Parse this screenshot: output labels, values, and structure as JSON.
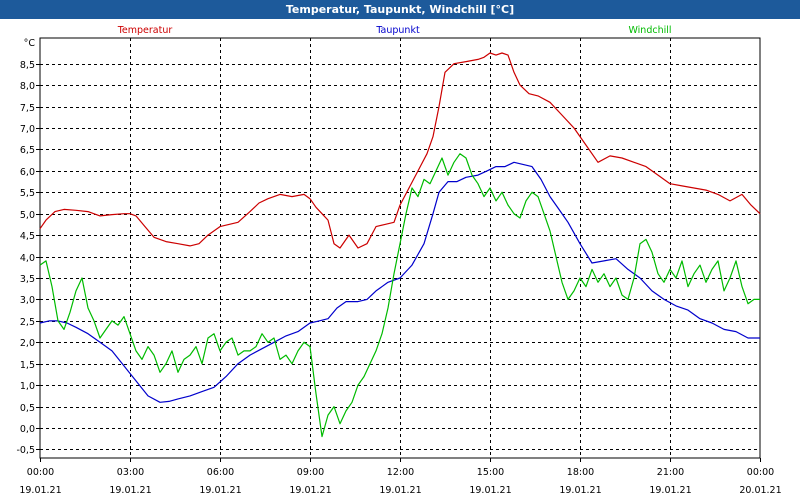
{
  "window": {
    "title": "Temperatur, Taupunkt, Windchill [°C]"
  },
  "chart_data": {
    "type": "line",
    "title": "Temperatur, Taupunkt, Windchill [°C]",
    "ylabel": "°C",
    "ylim": [
      -0.7,
      9.1
    ],
    "yticks": [
      -0.5,
      0.0,
      0.5,
      1.0,
      1.5,
      2.0,
      2.5,
      3.0,
      3.5,
      4.0,
      4.5,
      5.0,
      5.5,
      6.0,
      6.5,
      7.0,
      7.5,
      8.0,
      8.5
    ],
    "ytick_labels": [
      "-0,5",
      "0,0",
      "0,5",
      "1,0",
      "1,5",
      "2,0",
      "2,5",
      "3,0",
      "3,5",
      "4,0",
      "4,5",
      "5,0",
      "5,5",
      "6,0",
      "6,5",
      "7,0",
      "7,5",
      "8,0",
      "8,5"
    ],
    "xlim": [
      0,
      24
    ],
    "xticks": [
      {
        "h": 0,
        "time": "00:00",
        "date": "19.01.21"
      },
      {
        "h": 3,
        "time": "03:00",
        "date": "19.01.21"
      },
      {
        "h": 6,
        "time": "06:00",
        "date": "19.01.21"
      },
      {
        "h": 9,
        "time": "09:00",
        "date": "19.01.21"
      },
      {
        "h": 12,
        "time": "12:00",
        "date": "19.01.21"
      },
      {
        "h": 15,
        "time": "15:00",
        "date": "19.01.21"
      },
      {
        "h": 18,
        "time": "18:00",
        "date": "19.01.21"
      },
      {
        "h": 21,
        "time": "21:00",
        "date": "19.01.21"
      },
      {
        "h": 24,
        "time": "00:00",
        "date": "20.01.21"
      }
    ],
    "grid": true,
    "series": [
      {
        "name": "Temperatur",
        "color": "#cc0000",
        "x": [
          0,
          0.2,
          0.5,
          0.8,
          1.2,
          1.6,
          2.0,
          2.4,
          2.8,
          3.0,
          3.2,
          3.5,
          3.8,
          4.2,
          4.6,
          5.0,
          5.3,
          5.6,
          6.0,
          6.3,
          6.6,
          7.0,
          7.3,
          7.6,
          8.0,
          8.4,
          8.8,
          9.0,
          9.2,
          9.4,
          9.6,
          9.8,
          10.0,
          10.3,
          10.6,
          10.9,
          11.2,
          11.5,
          11.8,
          12.0,
          12.3,
          12.6,
          12.9,
          13.1,
          13.3,
          13.5,
          13.8,
          14.2,
          14.6,
          14.8,
          15.0,
          15.2,
          15.4,
          15.6,
          15.8,
          16.0,
          16.3,
          16.6,
          17.0,
          17.4,
          17.8,
          18.2,
          18.6,
          19.0,
          19.4,
          19.8,
          20.2,
          20.6,
          21.0,
          21.4,
          21.8,
          22.2,
          22.6,
          23.0,
          23.4,
          23.7,
          24.0
        ],
        "values": [
          4.65,
          4.85,
          5.05,
          5.1,
          5.08,
          5.05,
          4.95,
          4.98,
          5.0,
          5.0,
          4.95,
          4.7,
          4.45,
          4.35,
          4.3,
          4.25,
          4.3,
          4.5,
          4.7,
          4.75,
          4.8,
          5.05,
          5.25,
          5.35,
          5.45,
          5.4,
          5.45,
          5.35,
          5.15,
          5.0,
          4.85,
          4.3,
          4.2,
          4.5,
          4.2,
          4.3,
          4.7,
          4.75,
          4.8,
          5.2,
          5.6,
          6.0,
          6.4,
          6.8,
          7.5,
          8.3,
          8.5,
          8.55,
          8.6,
          8.65,
          8.75,
          8.7,
          8.75,
          8.7,
          8.3,
          8.0,
          7.8,
          7.75,
          7.6,
          7.3,
          7.0,
          6.6,
          6.2,
          6.35,
          6.3,
          6.2,
          6.1,
          5.9,
          5.7,
          5.65,
          5.6,
          5.55,
          5.45,
          5.3,
          5.45,
          5.2,
          5.0
        ]
      },
      {
        "name": "Taupunkt",
        "color": "#0000cc",
        "x": [
          0,
          0.3,
          0.6,
          0.9,
          1.2,
          1.6,
          2.0,
          2.4,
          2.8,
          3.2,
          3.6,
          4.0,
          4.3,
          4.6,
          5.0,
          5.4,
          5.8,
          6.2,
          6.6,
          7.0,
          7.4,
          7.8,
          8.2,
          8.6,
          9.0,
          9.3,
          9.6,
          9.9,
          10.2,
          10.6,
          10.9,
          11.2,
          11.6,
          12.0,
          12.4,
          12.8,
          13.1,
          13.3,
          13.6,
          13.9,
          14.2,
          14.6,
          14.9,
          15.2,
          15.5,
          15.8,
          16.1,
          16.4,
          16.7,
          17.0,
          17.3,
          17.6,
          18.0,
          18.4,
          18.8,
          19.2,
          19.6,
          20.0,
          20.4,
          20.8,
          21.2,
          21.6,
          22.0,
          22.4,
          22.8,
          23.2,
          23.6,
          24.0
        ],
        "values": [
          2.45,
          2.5,
          2.5,
          2.45,
          2.35,
          2.2,
          2.0,
          1.8,
          1.45,
          1.1,
          0.75,
          0.6,
          0.62,
          0.68,
          0.75,
          0.85,
          0.95,
          1.2,
          1.5,
          1.7,
          1.85,
          2.0,
          2.15,
          2.25,
          2.45,
          2.5,
          2.55,
          2.8,
          2.95,
          2.95,
          3.0,
          3.2,
          3.4,
          3.5,
          3.8,
          4.3,
          5.0,
          5.5,
          5.75,
          5.75,
          5.85,
          5.9,
          6.0,
          6.1,
          6.1,
          6.2,
          6.15,
          6.1,
          5.8,
          5.4,
          5.1,
          4.8,
          4.3,
          3.85,
          3.9,
          3.95,
          3.7,
          3.5,
          3.2,
          3.0,
          2.85,
          2.75,
          2.55,
          2.45,
          2.3,
          2.25,
          2.1,
          2.1
        ]
      },
      {
        "name": "Windchill",
        "color": "#00bb00",
        "x": [
          0,
          0.2,
          0.4,
          0.6,
          0.8,
          1.0,
          1.2,
          1.4,
          1.6,
          1.8,
          2.0,
          2.2,
          2.4,
          2.6,
          2.8,
          3.0,
          3.2,
          3.4,
          3.6,
          3.8,
          4.0,
          4.2,
          4.4,
          4.6,
          4.8,
          5.0,
          5.2,
          5.4,
          5.6,
          5.8,
          6.0,
          6.2,
          6.4,
          6.6,
          6.8,
          7.0,
          7.2,
          7.4,
          7.6,
          7.8,
          8.0,
          8.2,
          8.4,
          8.6,
          8.8,
          9.0,
          9.2,
          9.4,
          9.6,
          9.8,
          10.0,
          10.2,
          10.4,
          10.6,
          10.8,
          11.0,
          11.2,
          11.4,
          11.6,
          11.8,
          12.0,
          12.2,
          12.4,
          12.6,
          12.8,
          13.0,
          13.2,
          13.4,
          13.6,
          13.8,
          14.0,
          14.2,
          14.4,
          14.6,
          14.8,
          15.0,
          15.2,
          15.4,
          15.6,
          15.8,
          16.0,
          16.2,
          16.4,
          16.6,
          16.8,
          17.0,
          17.2,
          17.4,
          17.6,
          17.8,
          18.0,
          18.2,
          18.4,
          18.6,
          18.8,
          19.0,
          19.2,
          19.4,
          19.6,
          19.8,
          20.0,
          20.2,
          20.4,
          20.6,
          20.8,
          21.0,
          21.2,
          21.4,
          21.6,
          21.8,
          22.0,
          22.2,
          22.4,
          22.6,
          22.8,
          23.0,
          23.2,
          23.4,
          23.6,
          23.8,
          24.0
        ],
        "values": [
          3.8,
          3.9,
          3.3,
          2.5,
          2.3,
          2.7,
          3.2,
          3.5,
          2.8,
          2.5,
          2.1,
          2.3,
          2.5,
          2.4,
          2.6,
          2.2,
          1.8,
          1.6,
          1.9,
          1.7,
          1.3,
          1.5,
          1.8,
          1.3,
          1.6,
          1.7,
          1.9,
          1.5,
          2.1,
          2.2,
          1.8,
          2.0,
          2.1,
          1.7,
          1.8,
          1.8,
          1.9,
          2.2,
          2.0,
          2.1,
          1.6,
          1.7,
          1.5,
          1.8,
          2.0,
          1.9,
          0.8,
          -0.2,
          0.3,
          0.5,
          0.1,
          0.4,
          0.6,
          1.0,
          1.2,
          1.5,
          1.8,
          2.2,
          2.8,
          3.6,
          4.3,
          5.0,
          5.6,
          5.4,
          5.8,
          5.7,
          6.0,
          6.3,
          5.9,
          6.2,
          6.4,
          6.3,
          5.9,
          5.7,
          5.4,
          5.6,
          5.3,
          5.5,
          5.2,
          5.0,
          4.9,
          5.3,
          5.5,
          5.4,
          5.0,
          4.6,
          4.0,
          3.4,
          3.0,
          3.2,
          3.5,
          3.3,
          3.7,
          3.4,
          3.6,
          3.3,
          3.5,
          3.1,
          3.0,
          3.5,
          4.3,
          4.4,
          4.1,
          3.6,
          3.4,
          3.7,
          3.5,
          3.9,
          3.3,
          3.6,
          3.8,
          3.4,
          3.7,
          3.9,
          3.2,
          3.5,
          3.9,
          3.3,
          2.9,
          3.0,
          3.0
        ]
      }
    ],
    "legend": [
      {
        "label": "Temperatur",
        "color": "#cc0000",
        "placement": "top-left"
      },
      {
        "label": "Taupunkt",
        "color": "#0000cc",
        "placement": "top-center"
      },
      {
        "label": "Windchill",
        "color": "#00bb00",
        "placement": "top-right"
      }
    ]
  }
}
